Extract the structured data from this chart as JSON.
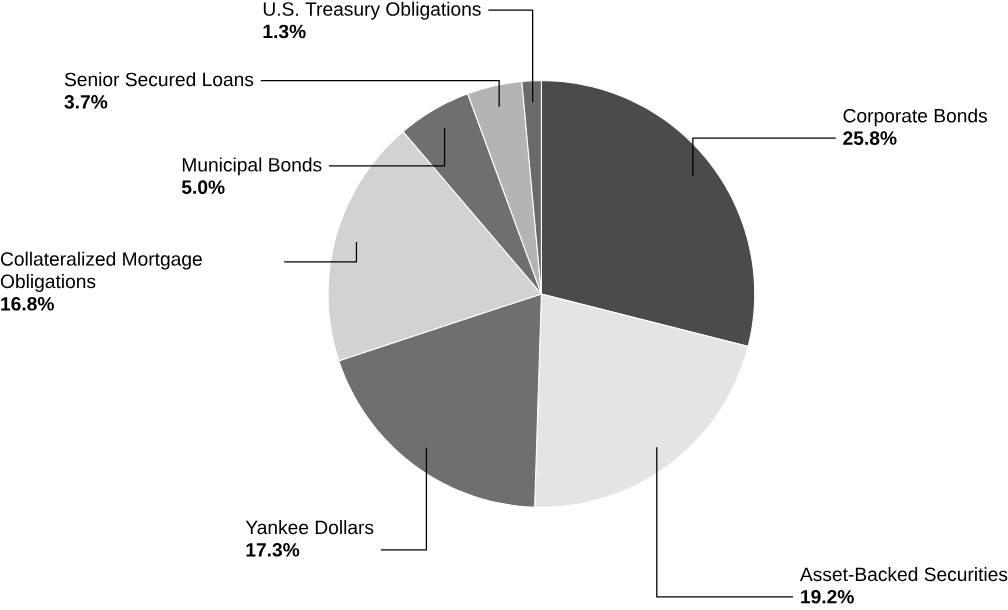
{
  "chart_data": {
    "type": "pie",
    "categories": [
      "Corporate Bonds",
      "Asset-Backed Securities",
      "Yankee Dollars",
      "Collateralized Mortgage Obligations",
      "Municipal Bonds",
      "Senior Secured Loans",
      "U.S. Treasury Obligations"
    ],
    "values": [
      25.8,
      19.2,
      17.3,
      16.8,
      5.0,
      3.7,
      1.3
    ],
    "value_labels": [
      "25.8%",
      "19.2%",
      "17.3%",
      "16.8%",
      "5.0%",
      "3.7%",
      "1.3%"
    ],
    "colors": [
      "#4b4b4b",
      "#e4e4e4",
      "#6f6f6f",
      "#d2d2d2",
      "#6f6f6f",
      "#b4b4b4",
      "#6a6a6a"
    ]
  }
}
